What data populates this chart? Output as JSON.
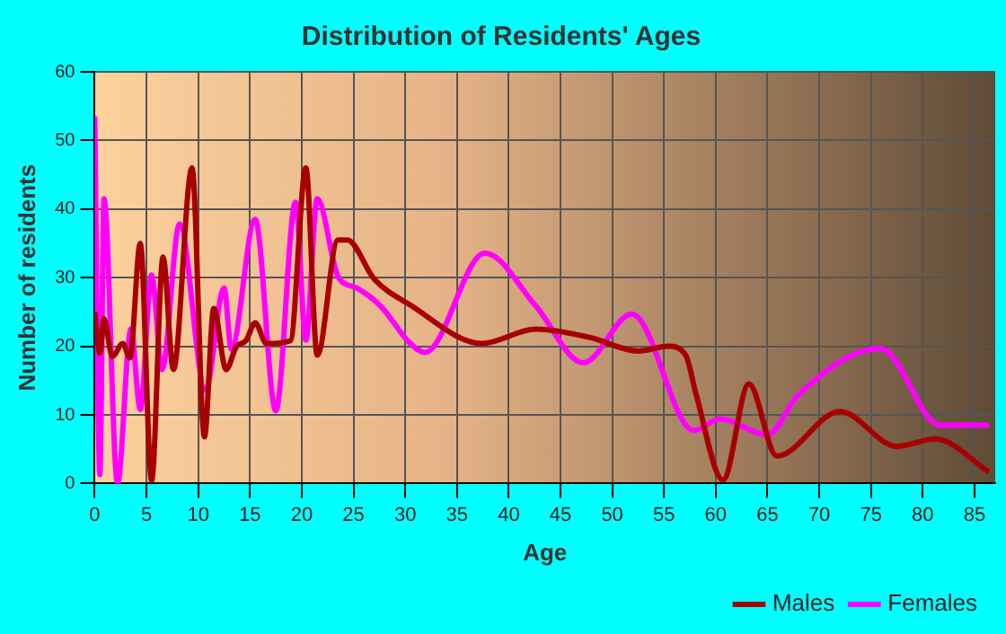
{
  "chart_data": {
    "type": "line",
    "title": "Distribution of Residents' Ages",
    "xlabel": "Age",
    "ylabel": "Number of residents",
    "xlim": [
      0,
      87
    ],
    "xticks": [
      0,
      5,
      10,
      15,
      20,
      25,
      30,
      35,
      40,
      45,
      50,
      55,
      60,
      65,
      70,
      75,
      80,
      85
    ],
    "ylim": [
      0,
      60
    ],
    "yticks": [
      0,
      10,
      20,
      30,
      40,
      50,
      60
    ],
    "grid": true,
    "legend": "bottom",
    "marker": "none",
    "line_style": "solid",
    "series": [
      {
        "name": "Males",
        "color": "#a80000",
        "x": [
          0,
          0.5,
          0.9,
          1.7,
          2.7,
          3.4,
          4.4,
          5.5,
          6.6,
          7.6,
          9.4,
          10.6,
          11.5,
          12.7,
          13.7,
          14.6,
          15.5,
          16.6,
          18.9,
          20.4,
          21.5,
          23.5,
          24.4,
          27,
          30.5,
          37.4,
          42.6,
          47.8,
          52.5,
          55.4,
          57.1,
          58.1,
          60.7,
          63.2,
          65.9,
          72,
          77.5,
          81.2,
          86.4
        ],
        "values": [
          25,
          19,
          24,
          18.5,
          20.4,
          18.3,
          35,
          0.4,
          33,
          16.6,
          46,
          6.8,
          25.5,
          16.6,
          20,
          20.8,
          23.4,
          20.4,
          20.8,
          46,
          18.7,
          35.5,
          35.5,
          29.8,
          26,
          20.4,
          22.5,
          21.3,
          19.3,
          20,
          18.7,
          13,
          0.5,
          14.5,
          4,
          10.5,
          5.4,
          6.5,
          1.7
        ]
      },
      {
        "name": "Females",
        "color": "#ff00ff",
        "x": [
          0,
          0.5,
          0.9,
          2.2,
          3.5,
          4.4,
          5.5,
          6.5,
          8.2,
          10.7,
          12.5,
          13.2,
          15.5,
          17.5,
          19.4,
          20.4,
          21.5,
          23.5,
          25.3,
          27.6,
          30.5,
          31.9,
          37.7,
          42.6,
          47.2,
          51.9,
          57.9,
          60.4,
          65,
          67.9,
          75.9,
          81.7,
          86.4
        ],
        "values": [
          53.5,
          1.3,
          41.5,
          0,
          22.5,
          10.8,
          30.4,
          16.6,
          37.8,
          13.6,
          28.5,
          19.6,
          38.5,
          10.6,
          41,
          20.9,
          41.5,
          30.2,
          28.5,
          25.9,
          20.4,
          19.1,
          33.6,
          25.9,
          17.6,
          24.7,
          7.7,
          9.4,
          7.1,
          12.8,
          19.7,
          8.5,
          8.5
        ]
      }
    ]
  }
}
